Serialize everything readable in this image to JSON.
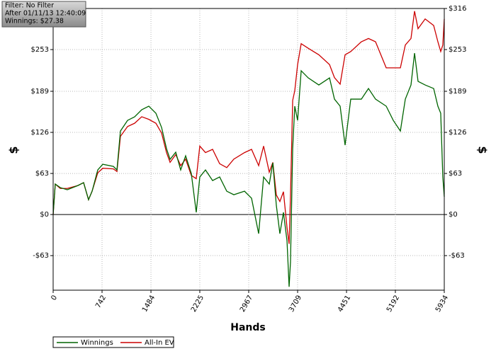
{
  "chart_data": {
    "type": "line",
    "annotations": [
      "Filter: No Filter",
      "After 01/11/13 12:40:09",
      "Winnings: $27.38"
    ],
    "x_label": "Hands",
    "y_label": "$",
    "xlim": [
      0,
      5934
    ],
    "xticks": [
      0,
      742,
      1484,
      2225,
      2967,
      3709,
      4451,
      5192,
      5934
    ],
    "ylim": [
      -116,
      316
    ],
    "yticks": [
      {
        "value": -63,
        "label": "-$63"
      },
      {
        "value": 0,
        "label": "$0"
      },
      {
        "value": 63,
        "label": "$63"
      },
      {
        "value": 126,
        "label": "$126"
      },
      {
        "value": 189,
        "label": "$189"
      },
      {
        "value": 253,
        "label": "$253"
      },
      {
        "value": 316,
        "label": "$316"
      }
    ],
    "grid": true,
    "legend": "bottom-left",
    "series": [
      {
        "name": "Winnings",
        "color": "#006400",
        "x": [
          0,
          32,
          108,
          215,
          376,
          462,
          537,
          591,
          677,
          753,
          914,
          968,
          1021,
          1129,
          1236,
          1344,
          1451,
          1559,
          1645,
          1720,
          1774,
          1860,
          1935,
          2010,
          2096,
          2171,
          2225,
          2311,
          2419,
          2526,
          2634,
          2741,
          2903,
          3010,
          3118,
          3193,
          3279,
          3333,
          3386,
          3440,
          3494,
          3548,
          3580,
          3601,
          3634,
          3666,
          3709,
          3763,
          3870,
          4031,
          4193,
          4268,
          4354,
          4429,
          4515,
          4676,
          4784,
          4891,
          5053,
          5160,
          5268,
          5343,
          5429,
          5483,
          5536,
          5644,
          5773,
          5837,
          5880,
          5912,
          5934
        ],
        "values": [
          0,
          46.7,
          41.3,
          38.0,
          44.5,
          48.9,
          22.8,
          35.8,
          68.4,
          77.1,
          73.8,
          68.4,
          128.1,
          144.4,
          149.9,
          160.7,
          166.2,
          155.3,
          133.6,
          101.0,
          84.7,
          95.6,
          68.4,
          90.1,
          63.0,
          3.3,
          57.6,
          68.4,
          52.1,
          57.6,
          35.8,
          30.4,
          35.8,
          25.0,
          -29.3,
          57.6,
          46.7,
          79.3,
          14.1,
          -29.3,
          3.3,
          -40.2,
          -110.8,
          -72.8,
          101.0,
          166.2,
          144.4,
          220.5,
          209.6,
          198.7,
          209.6,
          177.0,
          166.2,
          106.4,
          177.0,
          177.0,
          193.3,
          177.0,
          166.2,
          144.4,
          128.1,
          177.0,
          198.7,
          247.6,
          204.2,
          198.7,
          193.3,
          166.2,
          155.3,
          57.6,
          27.38
        ]
      },
      {
        "name": "All-In EV",
        "color": "#cc0000",
        "x": [
          0,
          32,
          108,
          215,
          376,
          462,
          537,
          591,
          677,
          753,
          914,
          968,
          1021,
          1129,
          1236,
          1344,
          1451,
          1559,
          1645,
          1720,
          1774,
          1860,
          1935,
          2010,
          2096,
          2171,
          2225,
          2311,
          2419,
          2526,
          2634,
          2741,
          2903,
          3010,
          3118,
          3193,
          3279,
          3333,
          3386,
          3440,
          3494,
          3548,
          3580,
          3601,
          3634,
          3666,
          3709,
          3763,
          3870,
          4031,
          4193,
          4268,
          4354,
          4429,
          4515,
          4676,
          4784,
          4891,
          5053,
          5160,
          5268,
          5343,
          5429,
          5483,
          5536,
          5644,
          5773,
          5837,
          5880,
          5912,
          5934
        ],
        "values": [
          0,
          46.7,
          40,
          40,
          44.5,
          48.9,
          22.8,
          35.8,
          64,
          71,
          70,
          66,
          120,
          135,
          140,
          150,
          146,
          140,
          125,
          95,
          80,
          92,
          75,
          85,
          60,
          55,
          105,
          95,
          100,
          78,
          72,
          85,
          95,
          100,
          75,
          105,
          65,
          80,
          30,
          20,
          35,
          -20,
          -45,
          30,
          175,
          190,
          230,
          262,
          255,
          245,
          230,
          210,
          200,
          245,
          250,
          265,
          270,
          265,
          225,
          225,
          225,
          260,
          270,
          312,
          285,
          300,
          290,
          265,
          250,
          260,
          300
        ]
      }
    ]
  }
}
